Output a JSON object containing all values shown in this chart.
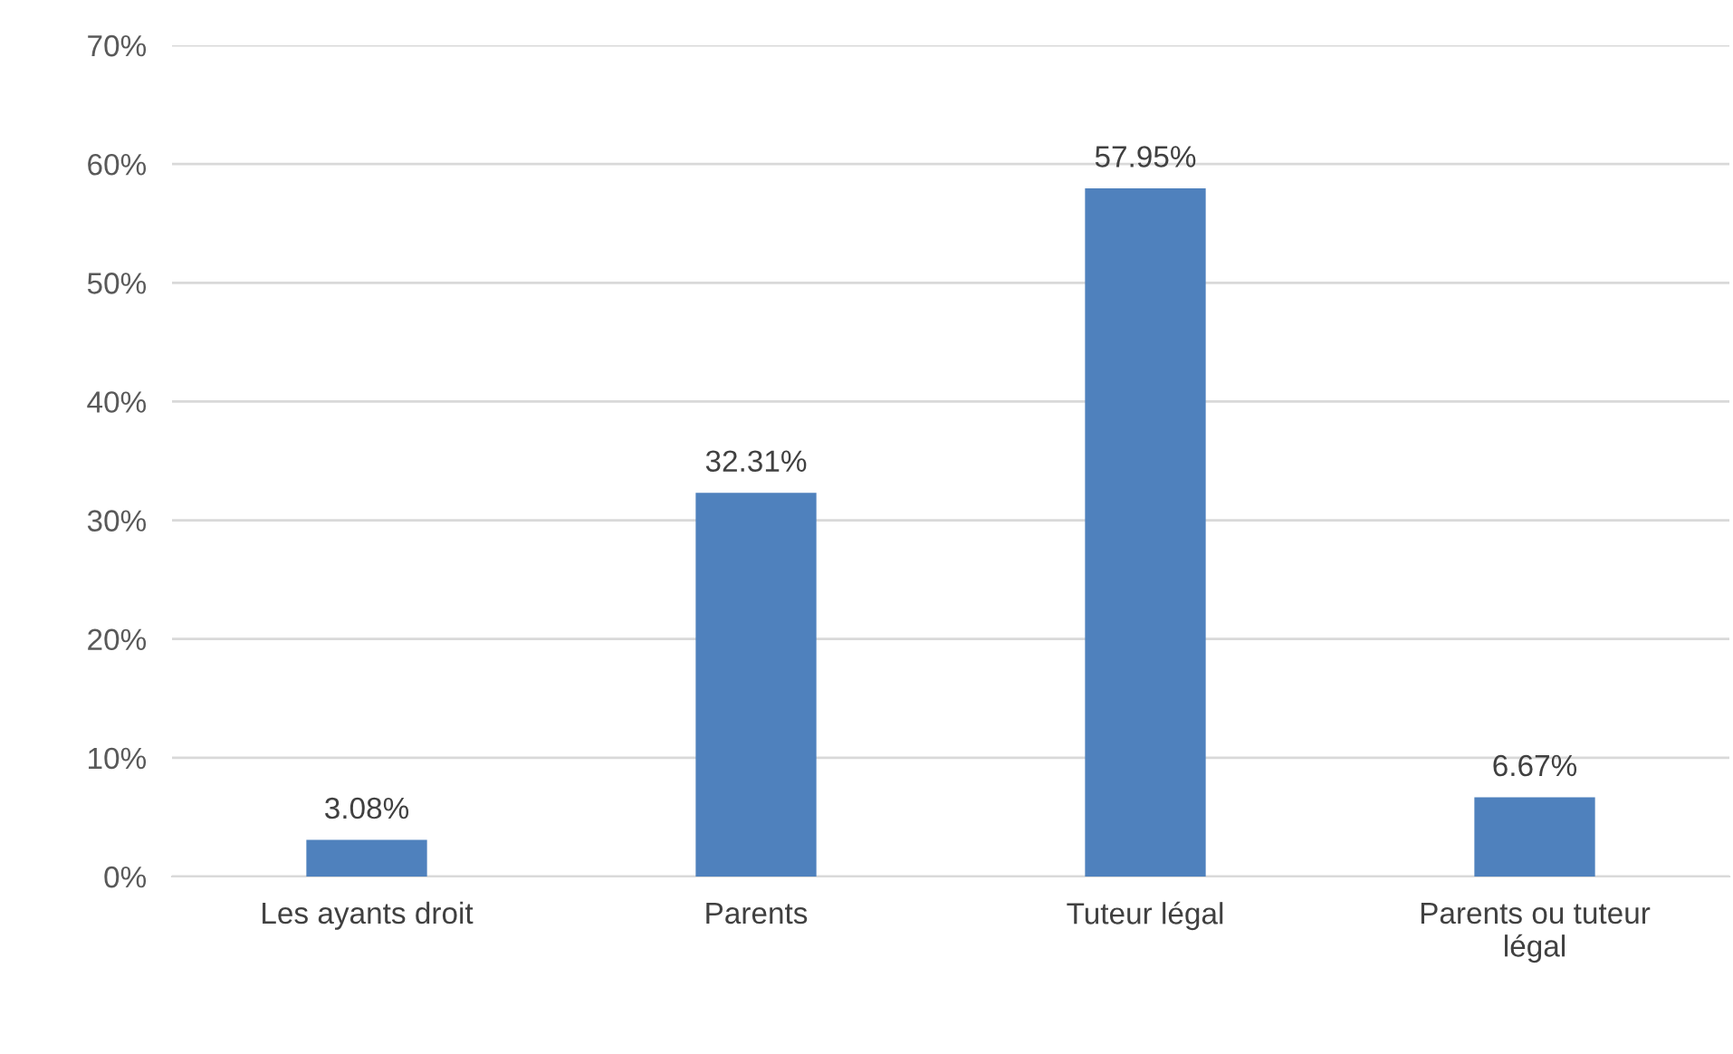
{
  "chart_data": {
    "type": "bar",
    "categories": [
      "Les ayants droit",
      "Parents",
      "Tuteur légal",
      "Parents ou tuteur légal"
    ],
    "values": [
      3.08,
      32.31,
      57.95,
      6.67
    ],
    "value_labels": [
      "3.08%",
      "32.31%",
      "57.95%",
      "6.67%"
    ],
    "color": "#4f81bd",
    "ylim": [
      0,
      70
    ],
    "yticks": [
      {
        "value": 0,
        "label": "0%"
      },
      {
        "value": 10,
        "label": "10%"
      },
      {
        "value": 20,
        "label": "20%"
      },
      {
        "value": 30,
        "label": "30%"
      },
      {
        "value": 40,
        "label": "40%"
      },
      {
        "value": 50,
        "label": "50%"
      },
      {
        "value": 60,
        "label": "60%"
      },
      {
        "value": 70,
        "label": "70%"
      }
    ],
    "grid": "y",
    "legend": false
  }
}
